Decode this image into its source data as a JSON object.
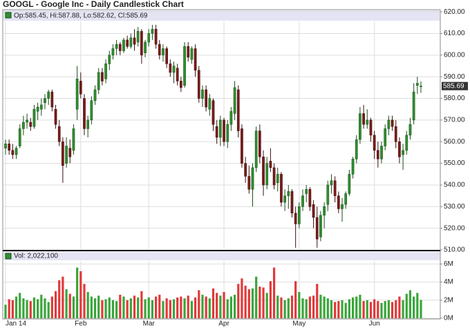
{
  "chart_data": {
    "type": "candlestick",
    "title": "GOOGL - Google Inc - Daily Candlestick Chart",
    "info_label": "Op:585.45, Hi:587.88, Lo:582.62, Cl:585.69",
    "volume_label": "Vol: 2,022,100",
    "categories": [
      "Jan 14",
      null,
      null,
      null,
      null,
      null,
      null,
      null,
      null,
      null,
      null,
      null,
      null,
      null,
      null,
      null,
      null,
      null,
      null,
      null,
      null,
      "Feb",
      null,
      null,
      null,
      null,
      null,
      null,
      null,
      null,
      null,
      null,
      null,
      null,
      null,
      null,
      null,
      null,
      null,
      null,
      "Mar",
      null,
      null,
      null,
      null,
      null,
      null,
      null,
      null,
      null,
      null,
      null,
      null,
      null,
      null,
      null,
      null,
      null,
      null,
      null,
      null,
      "Apr",
      null,
      null,
      null,
      null,
      null,
      null,
      null,
      null,
      null,
      null,
      null,
      null,
      null,
      null,
      null,
      null,
      null,
      null,
      null,
      null,
      "May",
      null,
      null,
      null,
      null,
      null,
      null,
      null,
      null,
      null,
      null,
      null,
      null,
      null,
      null,
      null,
      null,
      null,
      null,
      null,
      null,
      "Jun",
      null,
      null,
      null,
      null,
      null,
      null,
      null,
      null,
      null,
      null,
      null,
      null,
      null
    ],
    "ohlc": [
      [
        557,
        561,
        554,
        559
      ],
      [
        559,
        561,
        554,
        556
      ],
      [
        556,
        559,
        552,
        554
      ],
      [
        554,
        558,
        552,
        557
      ],
      [
        558,
        568,
        557,
        566
      ],
      [
        566,
        572,
        563,
        569
      ],
      [
        569,
        573,
        566,
        570
      ],
      [
        569,
        571,
        565,
        567
      ],
      [
        567,
        577,
        566,
        575
      ],
      [
        574,
        578,
        570,
        576
      ],
      [
        575,
        580,
        572,
        577
      ],
      [
        578,
        582,
        575,
        580
      ],
      [
        580,
        584,
        577,
        583
      ],
      [
        583,
        584,
        574,
        576
      ],
      [
        575,
        577,
        566,
        568
      ],
      [
        567,
        570,
        558,
        560
      ],
      [
        560,
        562,
        541,
        549
      ],
      [
        550,
        562,
        548,
        558
      ],
      [
        557,
        561,
        550,
        553
      ],
      [
        556,
        568,
        554,
        566
      ],
      [
        575,
        595,
        570,
        589
      ],
      [
        588,
        592,
        580,
        582
      ],
      [
        580,
        582,
        563,
        566
      ],
      [
        566,
        572,
        562,
        570
      ],
      [
        570,
        581,
        568,
        579
      ],
      [
        579,
        586,
        577,
        584
      ],
      [
        584,
        594,
        582,
        592
      ],
      [
        592,
        594,
        586,
        588
      ],
      [
        589,
        598,
        587,
        596
      ],
      [
        596,
        602,
        593,
        600
      ],
      [
        600,
        605,
        598,
        603
      ],
      [
        603,
        607,
        600,
        605
      ],
      [
        605,
        606,
        600,
        602
      ],
      [
        602,
        608,
        601,
        607
      ],
      [
        607,
        609,
        603,
        604
      ],
      [
        604,
        610,
        603,
        608
      ],
      [
        608,
        612,
        602,
        605
      ],
      [
        606,
        613,
        604,
        611
      ],
      [
        611,
        612,
        596,
        600
      ],
      [
        601,
        607,
        599,
        606
      ],
      [
        606,
        612,
        604,
        610
      ],
      [
        610,
        614,
        607,
        612
      ],
      [
        612,
        614,
        603,
        605
      ],
      [
        605,
        607,
        598,
        600
      ],
      [
        600,
        605,
        597,
        603
      ],
      [
        603,
        604,
        594,
        596
      ],
      [
        596,
        598,
        590,
        592
      ],
      [
        592,
        597,
        587,
        595
      ],
      [
        594,
        596,
        586,
        588
      ],
      [
        588,
        590,
        583,
        585
      ],
      [
        586,
        606,
        585,
        604
      ],
      [
        604,
        606,
        597,
        599
      ],
      [
        598,
        604,
        596,
        603
      ],
      [
        603,
        605,
        590,
        593
      ],
      [
        593,
        595,
        578,
        580
      ],
      [
        580,
        586,
        576,
        584
      ],
      [
        584,
        586,
        574,
        576
      ],
      [
        575,
        582,
        572,
        580
      ],
      [
        579,
        580,
        565,
        568
      ],
      [
        567,
        570,
        559,
        562
      ],
      [
        562,
        572,
        558,
        570
      ],
      [
        570,
        571,
        558,
        560
      ],
      [
        560,
        570,
        557,
        568
      ],
      [
        568,
        576,
        565,
        574
      ],
      [
        573,
        588,
        570,
        585
      ],
      [
        584,
        586,
        562,
        565
      ],
      [
        566,
        568,
        548,
        550
      ],
      [
        550,
        553,
        541,
        544
      ],
      [
        544,
        549,
        536,
        538
      ],
      [
        538,
        550,
        530,
        548
      ],
      [
        548,
        567,
        546,
        565
      ],
      [
        565,
        568,
        550,
        553
      ],
      [
        553,
        556,
        535,
        540
      ],
      [
        540,
        553,
        538,
        550
      ],
      [
        551,
        557,
        546,
        548
      ],
      [
        548,
        550,
        538,
        540
      ],
      [
        541,
        548,
        537,
        545
      ],
      [
        545,
        546,
        530,
        532
      ],
      [
        532,
        538,
        528,
        535
      ],
      [
        535,
        540,
        529,
        537
      ],
      [
        537,
        538,
        525,
        527
      ],
      [
        527,
        530,
        511,
        522
      ],
      [
        522,
        532,
        520,
        530
      ],
      [
        530,
        538,
        528,
        535
      ],
      [
        536,
        540,
        532,
        538
      ],
      [
        538,
        539,
        528,
        530
      ],
      [
        531,
        533,
        520,
        525
      ],
      [
        525,
        530,
        511,
        515
      ],
      [
        516,
        528,
        514,
        526
      ],
      [
        526,
        532,
        520,
        530
      ],
      [
        531,
        542,
        528,
        540
      ],
      [
        540,
        545,
        536,
        542
      ],
      [
        542,
        544,
        532,
        535
      ],
      [
        535,
        537,
        527,
        529
      ],
      [
        529,
        534,
        523,
        531
      ],
      [
        531,
        537,
        529,
        536
      ],
      [
        536,
        547,
        535,
        545
      ],
      [
        545,
        553,
        543,
        552
      ],
      [
        552,
        563,
        550,
        561
      ],
      [
        561,
        576,
        559,
        573
      ],
      [
        573,
        577,
        566,
        568
      ],
      [
        568,
        575,
        566,
        570
      ],
      [
        570,
        571,
        560,
        563
      ],
      [
        563,
        565,
        552,
        556
      ],
      [
        556,
        560,
        548,
        552
      ],
      [
        552,
        560,
        550,
        558
      ],
      [
        558,
        568,
        556,
        566
      ],
      [
        566,
        572,
        563,
        570
      ],
      [
        570,
        572,
        565,
        567
      ],
      [
        567,
        570,
        557,
        560
      ],
      [
        560,
        562,
        550,
        553
      ],
      [
        554,
        559,
        547,
        556
      ],
      [
        556,
        565,
        554,
        563
      ],
      [
        563,
        571,
        561,
        568
      ],
      [
        570,
        587,
        568,
        583
      ],
      [
        586,
        590,
        582,
        587
      ],
      [
        585.45,
        587.88,
        582.62,
        585.69
      ]
    ],
    "volume": [
      1.5,
      2.1,
      2.0,
      2.4,
      2.8,
      2.2,
      2.0,
      1.9,
      2.3,
      2.1,
      2.6,
      2.2,
      1.8,
      2.4,
      3.0,
      4.2,
      4.6,
      3.2,
      2.7,
      2.4,
      5.6,
      5.2,
      3.8,
      2.9,
      2.4,
      2.2,
      2.5,
      2.0,
      2.1,
      2.3,
      2.0,
      1.9,
      2.6,
      2.4,
      2.0,
      2.2,
      2.5,
      2.3,
      3.0,
      2.1,
      2.3,
      2.0,
      2.4,
      2.6,
      1.9,
      2.2,
      2.0,
      2.1,
      2.3,
      2.4,
      2.2,
      2.5,
      1.9,
      2.3,
      3.1,
      2.6,
      2.4,
      2.2,
      3.3,
      2.8,
      2.5,
      2.9,
      2.1,
      2.4,
      2.6,
      3.8,
      4.4,
      3.6,
      3.2,
      3.3,
      4.6,
      3.5,
      3.4,
      2.8,
      4.1,
      5.6,
      2.5,
      2.3,
      2.0,
      2.2,
      2.5,
      4.1,
      2.9,
      2.2,
      2.1,
      2.4,
      2.5,
      3.8,
      2.6,
      2.4,
      2.2,
      2.0,
      1.8,
      1.9,
      2.0,
      1.7,
      2.1,
      2.3,
      2.4,
      2.6,
      1.9,
      2.0,
      1.8,
      2.1,
      1.9,
      1.7,
      1.9,
      2.0,
      1.8,
      2.0,
      2.4,
      2.0,
      2.7,
      3.1,
      2.4,
      2.8,
      2.0221
    ],
    "up_color": "#2f8f2f",
    "down_color": "#7a1c1c",
    "volume_up_color": "#3aa63a",
    "volume_down_color": "#e2393a",
    "ylim": [
      510,
      621
    ],
    "yticks": [
      {
        "value": 510,
        "label": "510.00"
      },
      {
        "value": 520,
        "label": "520.00"
      },
      {
        "value": 530,
        "label": "530.00"
      },
      {
        "value": 540,
        "label": "540.00"
      },
      {
        "value": 550,
        "label": "550.00"
      },
      {
        "value": 560,
        "label": "560.00"
      },
      {
        "value": 570,
        "label": "570.00"
      },
      {
        "value": 580,
        "label": "580.00"
      },
      {
        "value": 590,
        "label": "590.00"
      },
      {
        "value": 600,
        "label": "600.00"
      },
      {
        "value": 610,
        "label": "610.00"
      },
      {
        "value": 620,
        "label": "620.00"
      }
    ],
    "y2lim": [
      0,
      7.4
    ],
    "y2ticks": [
      {
        "value": 0,
        "label": "0M"
      },
      {
        "value": 2,
        "label": "2M"
      },
      {
        "value": 4,
        "label": "4M"
      },
      {
        "value": 6,
        "label": "6M"
      }
    ],
    "grid": true
  }
}
